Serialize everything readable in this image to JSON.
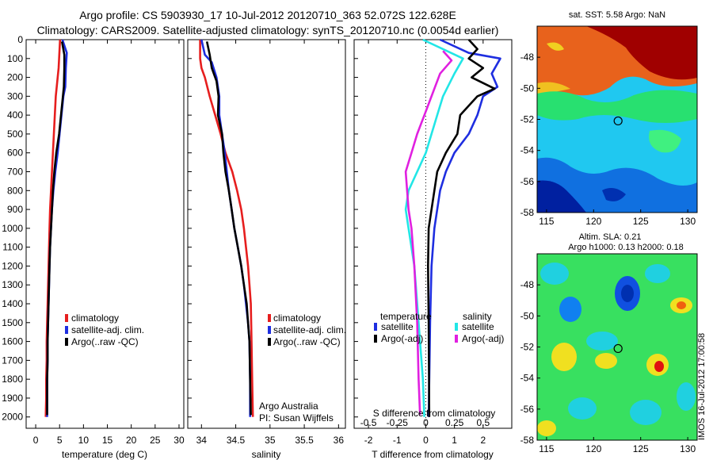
{
  "title": {
    "line1": "Argo profile: CS 5903930_17 10-Jul-2012 20120710_363 52.072S 122.628E",
    "line2": "Climatology: CARS2009. Satellite-adjusted climatology: synTS_20120710.nc (0.0054d earlier)"
  },
  "side_stamp": "IMOS 16-Jul-2012 17:00:58",
  "colors": {
    "climatology": "#e61e1e",
    "satellite": "#1e2ee0",
    "argo": "#000000",
    "cyan": "#22e6e6",
    "magenta": "#e020e0"
  },
  "chart_data": [
    {
      "type": "line",
      "xlabel": "temperature (deg C)",
      "ylabel": "",
      "xlim": [
        -2,
        31
      ],
      "ylim": [
        2060,
        0
      ],
      "xticks": [
        0,
        5,
        10,
        15,
        20,
        25,
        30
      ],
      "yticks": [
        0,
        100,
        200,
        300,
        400,
        500,
        600,
        700,
        800,
        900,
        1000,
        1100,
        1200,
        1300,
        1400,
        1500,
        1600,
        1700,
        1800,
        1900,
        2000
      ],
      "legend": [
        "climatology",
        "satellite-adj. clim.",
        "Argo(..raw -QC)"
      ],
      "series": [
        {
          "name": "climatology",
          "color": "climatology",
          "points": [
            [
              5.1,
              0
            ],
            [
              5.0,
              50
            ],
            [
              4.9,
              100
            ],
            [
              4.8,
              150
            ],
            [
              4.6,
              200
            ],
            [
              4.4,
              250
            ],
            [
              4.2,
              300
            ],
            [
              4.0,
              400
            ],
            [
              3.8,
              500
            ],
            [
              3.6,
              600
            ],
            [
              3.4,
              700
            ],
            [
              3.2,
              800
            ],
            [
              3.0,
              900
            ],
            [
              2.9,
              1000
            ],
            [
              2.8,
              1100
            ],
            [
              2.7,
              1200
            ],
            [
              2.6,
              1300
            ],
            [
              2.5,
              1400
            ],
            [
              2.4,
              1500
            ],
            [
              2.3,
              1600
            ],
            [
              2.3,
              1700
            ],
            [
              2.2,
              1800
            ],
            [
              2.2,
              1900
            ],
            [
              2.1,
              2000
            ]
          ]
        },
        {
          "name": "satellite-adj. clim.",
          "color": "satellite",
          "points": [
            [
              5.6,
              0
            ],
            [
              6.5,
              70
            ],
            [
              6.3,
              150
            ],
            [
              6.2,
              250
            ],
            [
              5.8,
              300
            ],
            [
              5.4,
              400
            ],
            [
              5.0,
              500
            ],
            [
              4.6,
              600
            ],
            [
              4.1,
              700
            ],
            [
              3.7,
              800
            ],
            [
              3.4,
              900
            ],
            [
              3.2,
              1000
            ],
            [
              3.0,
              1100
            ],
            [
              2.9,
              1200
            ],
            [
              2.8,
              1300
            ],
            [
              2.7,
              1400
            ],
            [
              2.6,
              1500
            ],
            [
              2.5,
              1600
            ],
            [
              2.5,
              1700
            ],
            [
              2.4,
              1800
            ],
            [
              2.4,
              1900
            ],
            [
              2.4,
              2000
            ]
          ]
        },
        {
          "name": "Argo(..raw -QC)",
          "color": "argo",
          "points": [
            [
              5.5,
              10
            ],
            [
              6.0,
              80
            ],
            [
              6.0,
              150
            ],
            [
              5.9,
              250
            ],
            [
              5.7,
              300
            ],
            [
              5.3,
              400
            ],
            [
              4.9,
              500
            ],
            [
              4.3,
              600
            ],
            [
              3.9,
              700
            ],
            [
              3.6,
              800
            ],
            [
              3.4,
              900
            ],
            [
              3.2,
              1000
            ],
            [
              3.0,
              1100
            ],
            [
              2.9,
              1200
            ],
            [
              2.8,
              1300
            ],
            [
              2.7,
              1400
            ],
            [
              2.6,
              1500
            ],
            [
              2.5,
              1600
            ],
            [
              2.5,
              1700
            ],
            [
              2.4,
              1800
            ],
            [
              2.4,
              1900
            ],
            [
              2.4,
              1990
            ]
          ]
        }
      ]
    },
    {
      "type": "line",
      "xlabel": "salinity",
      "ylabel": "",
      "xlim": [
        33.8,
        36.1
      ],
      "ylim": [
        2060,
        0
      ],
      "xticks": [
        34,
        34.5,
        35,
        35.5,
        36
      ],
      "legend": [
        "climatology",
        "satellite-adj. clim.",
        "Argo(..raw -QC)"
      ],
      "annotations": [
        "Argo Australia",
        "PI: Susan Wijffels"
      ],
      "series": [
        {
          "name": "climatology",
          "color": "climatology",
          "points": [
            [
              33.98,
              0
            ],
            [
              33.98,
              100
            ],
            [
              34.0,
              150
            ],
            [
              34.05,
              200
            ],
            [
              34.12,
              300
            ],
            [
              34.2,
              400
            ],
            [
              34.28,
              500
            ],
            [
              34.35,
              600
            ],
            [
              34.45,
              700
            ],
            [
              34.52,
              800
            ],
            [
              34.58,
              900
            ],
            [
              34.62,
              1000
            ],
            [
              34.65,
              1100
            ],
            [
              34.68,
              1200
            ],
            [
              34.7,
              1300
            ],
            [
              34.72,
              1400
            ],
            [
              34.73,
              1600
            ],
            [
              34.74,
              1800
            ],
            [
              34.75,
              2000
            ]
          ]
        },
        {
          "name": "satellite-adj. clim.",
          "color": "satellite",
          "points": [
            [
              34.0,
              0
            ],
            [
              34.05,
              80
            ],
            [
              34.15,
              120
            ],
            [
              34.22,
              200
            ],
            [
              34.26,
              300
            ],
            [
              34.26,
              400
            ],
            [
              34.3,
              500
            ],
            [
              34.34,
              600
            ],
            [
              34.37,
              700
            ],
            [
              34.4,
              800
            ],
            [
              34.44,
              900
            ],
            [
              34.48,
              1000
            ],
            [
              34.53,
              1100
            ],
            [
              34.58,
              1200
            ],
            [
              34.62,
              1300
            ],
            [
              34.65,
              1400
            ],
            [
              34.68,
              1500
            ],
            [
              34.7,
              1600
            ],
            [
              34.71,
              1800
            ],
            [
              34.71,
              2000
            ]
          ]
        },
        {
          "name": "Argo(..raw -QC)",
          "color": "argo",
          "points": [
            [
              34.08,
              10
            ],
            [
              34.12,
              80
            ],
            [
              34.15,
              150
            ],
            [
              34.22,
              220
            ],
            [
              34.25,
              300
            ],
            [
              34.24,
              400
            ],
            [
              34.3,
              500
            ],
            [
              34.32,
              600
            ],
            [
              34.35,
              700
            ],
            [
              34.4,
              800
            ],
            [
              34.44,
              900
            ],
            [
              34.48,
              1000
            ],
            [
              34.53,
              1100
            ],
            [
              34.58,
              1200
            ],
            [
              34.62,
              1300
            ],
            [
              34.66,
              1400
            ],
            [
              34.68,
              1500
            ],
            [
              34.7,
              1600
            ],
            [
              34.71,
              1800
            ],
            [
              34.72,
              1990
            ]
          ]
        }
      ]
    },
    {
      "type": "line",
      "xlabel": "T difference from climatology",
      "xlabel_top": "S difference from climatology",
      "xlim": [
        -2.5,
        3.0
      ],
      "ylim": [
        2060,
        0
      ],
      "xticks": [
        -2,
        -1,
        0,
        1,
        2
      ],
      "sticks": [
        "-0.5",
        "-0.25",
        "0",
        "0.25",
        "0.5"
      ],
      "legend_headers": [
        "temperature",
        "salinity"
      ],
      "legend": [
        "satellite",
        "Argo(-adj)",
        "satellite",
        "Argo(-adj)"
      ],
      "series": [
        {
          "name": "temperature satellite",
          "color": "satellite",
          "points": [
            [
              0.5,
              0
            ],
            [
              1.5,
              70
            ],
            [
              2.6,
              100
            ],
            [
              2.3,
              180
            ],
            [
              2.5,
              250
            ],
            [
              2.0,
              300
            ],
            [
              1.8,
              400
            ],
            [
              1.5,
              500
            ],
            [
              1.0,
              600
            ],
            [
              0.7,
              700
            ],
            [
              0.5,
              800
            ],
            [
              0.4,
              900
            ],
            [
              0.3,
              1000
            ],
            [
              0.2,
              1200
            ],
            [
              0.15,
              1500
            ],
            [
              0.1,
              2000
            ]
          ]
        },
        {
          "name": "temperature Argo(-adj)",
          "color": "argo",
          "points": [
            [
              1.5,
              0
            ],
            [
              1.8,
              50
            ],
            [
              1.5,
              100
            ],
            [
              2.0,
              150
            ],
            [
              1.6,
              200
            ],
            [
              2.4,
              260
            ],
            [
              1.8,
              300
            ],
            [
              1.2,
              400
            ],
            [
              1.1,
              500
            ],
            [
              0.9,
              550
            ],
            [
              0.7,
              600
            ],
            [
              0.4,
              700
            ],
            [
              0.3,
              800
            ],
            [
              0.2,
              900
            ],
            [
              0.1,
              1000
            ],
            [
              0.08,
              1200
            ],
            [
              0.1,
              1500
            ],
            [
              0.12,
              2000
            ]
          ]
        },
        {
          "name": "salinity satellite",
          "color": "cyan",
          "points": [
            [
              -0.1,
              0
            ],
            [
              1.3,
              100
            ],
            [
              1.0,
              180
            ],
            [
              0.8,
              240
            ],
            [
              0.6,
              300
            ],
            [
              0.4,
              400
            ],
            [
              0.2,
              500
            ],
            [
              0.0,
              600
            ],
            [
              -0.3,
              700
            ],
            [
              -0.6,
              800
            ],
            [
              -0.7,
              900
            ],
            [
              -0.6,
              1000
            ],
            [
              -0.4,
              1200
            ],
            [
              -0.3,
              1400
            ],
            [
              -0.2,
              1600
            ],
            [
              -0.1,
              1800
            ],
            [
              -0.05,
              2000
            ]
          ]
        },
        {
          "name": "salinity Argo(-adj)",
          "color": "magenta",
          "points": [
            [
              0.6,
              60
            ],
            [
              0.9,
              110
            ],
            [
              0.5,
              180
            ],
            [
              0.3,
              260
            ],
            [
              0.0,
              380
            ],
            [
              -0.3,
              500
            ],
            [
              -0.5,
              600
            ],
            [
              -0.7,
              700
            ],
            [
              -0.6,
              900
            ],
            [
              -0.5,
              1000
            ],
            [
              -0.4,
              1200
            ],
            [
              -0.3,
              1500
            ],
            [
              -0.25,
              1800
            ],
            [
              -0.2,
              1990
            ]
          ]
        }
      ]
    },
    {
      "type": "heatmap",
      "title": "sat. SST: 5.58  Argo: NaN",
      "xlim": [
        114,
        131
      ],
      "ylim": [
        -58,
        -46
      ],
      "xticks": [
        115,
        120,
        125,
        130
      ],
      "yticks": [
        -48,
        -50,
        -52,
        -54,
        -56,
        -58
      ],
      "marker": [
        122.6,
        -52.1
      ]
    },
    {
      "type": "heatmap",
      "title_line1": "Altim. SLA: 0.21",
      "title_line2": "Argo h1000: 0.13  h2000: 0.18",
      "xlim": [
        114,
        131
      ],
      "ylim": [
        -58,
        -46
      ],
      "xticks": [
        115,
        120,
        125,
        130
      ],
      "yticks": [
        -48,
        -50,
        -52,
        -54,
        -56,
        -58
      ],
      "marker": [
        122.6,
        -52.1
      ]
    }
  ]
}
